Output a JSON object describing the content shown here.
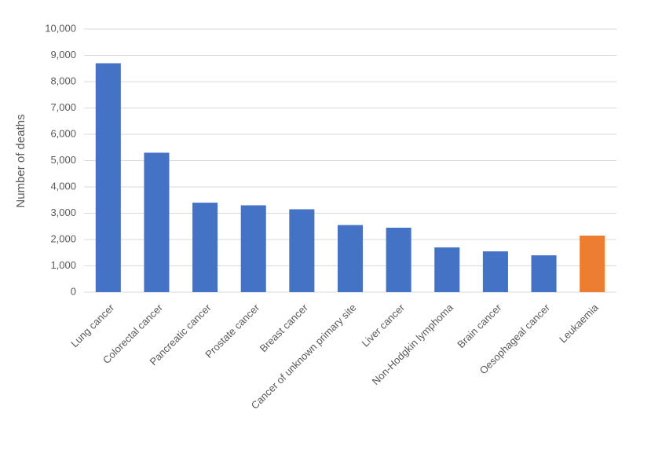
{
  "chart_data": {
    "type": "bar",
    "y_label": "Number of deaths",
    "categories": [
      "Lung cancer",
      "Colorectal cancer",
      "Pancreatic cancer",
      "Prostate cancer",
      "Breast cancer",
      "Cancer of unknown primary site",
      "Liver cancer",
      "Non-Hodgkin lymphoma",
      "Brain cancer",
      "Oesophageal cancer",
      "Leukaemia"
    ],
    "values": [
      8700,
      5300,
      3400,
      3300,
      3150,
      2550,
      2450,
      1700,
      1550,
      1400,
      2150
    ],
    "colors": [
      "#4472c4",
      "#4472c4",
      "#4472c4",
      "#4472c4",
      "#4472c4",
      "#4472c4",
      "#4472c4",
      "#4472c4",
      "#4472c4",
      "#4472c4",
      "#ed7d31"
    ],
    "ylim": [
      0,
      10000
    ],
    "yticks": [
      0,
      {
        "value": 1000,
        "label": "1,000"
      },
      {
        "value": 2000,
        "label": "2,000"
      },
      {
        "value": 3000,
        "label": "3,000"
      },
      {
        "value": 4000,
        "label": "4,000"
      },
      {
        "value": 5000,
        "label": "5,000"
      },
      {
        "value": 6000,
        "label": "6,000"
      },
      {
        "value": 7000,
        "label": "7,000"
      },
      {
        "value": 8000,
        "label": "8,000"
      },
      {
        "value": 9000,
        "label": "9,000"
      },
      {
        "value": 10000,
        "label": "10,000"
      }
    ],
    "grid": true
  }
}
